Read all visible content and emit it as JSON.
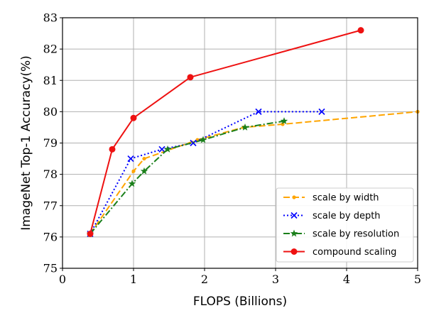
{
  "chart_data": {
    "type": "line",
    "xlabel": "FLOPS (Billions)",
    "ylabel": "ImageNet Top-1 Accuracy(%)",
    "xlim": [
      0,
      5
    ],
    "ylim": [
      75,
      83
    ],
    "xticks": [
      "0",
      "1",
      "2",
      "3",
      "4",
      "5"
    ],
    "yticks": [
      "75",
      "76",
      "77",
      "78",
      "79",
      "80",
      "81",
      "82",
      "83"
    ],
    "grid": true,
    "legend_position": "lower right",
    "series": [
      {
        "name": "scale by width",
        "color": "#FFA500",
        "linestyle": "dashed",
        "marker": "dot",
        "x": [
          0.39,
          1.0,
          1.15,
          1.9,
          2.55,
          3.1,
          5.0
        ],
        "y": [
          76.1,
          78.1,
          78.5,
          79.1,
          79.5,
          79.6,
          80.0
        ]
      },
      {
        "name": "scale by depth",
        "color": "#0000FF",
        "linestyle": "dotted",
        "marker": "x",
        "x": [
          0.39,
          0.96,
          1.4,
          1.84,
          2.76,
          3.65
        ],
        "y": [
          76.1,
          78.5,
          78.8,
          79.0,
          80.0,
          80.0
        ]
      },
      {
        "name": "scale by resolution",
        "color": "#1A7F1A",
        "linestyle": "dashdot",
        "marker": "star",
        "x": [
          0.39,
          0.98,
          1.15,
          1.48,
          1.98,
          2.57,
          3.12
        ],
        "y": [
          76.1,
          77.7,
          78.1,
          78.8,
          79.1,
          79.5,
          79.7
        ]
      },
      {
        "name": "compound scaling",
        "color": "#EE1111",
        "linestyle": "solid",
        "marker": "circle",
        "x": [
          0.39,
          0.7,
          1.0,
          1.8,
          4.2
        ],
        "y": [
          76.1,
          78.8,
          79.8,
          81.1,
          82.6
        ]
      }
    ]
  }
}
